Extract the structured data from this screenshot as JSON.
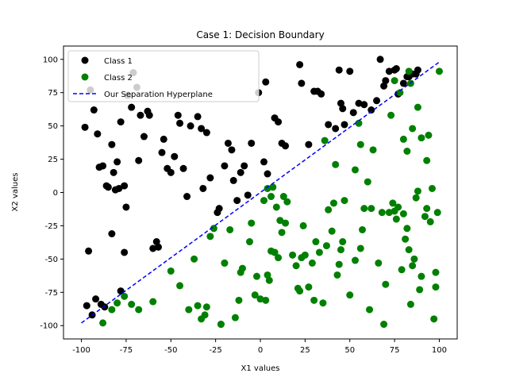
{
  "chart_data": {
    "type": "scatter",
    "title": "Case 1: Decision Boundary",
    "xlabel": "X1 values",
    "ylabel": "X2 values",
    "xlim": [
      -110,
      110
    ],
    "ylim": [
      -110,
      110
    ],
    "xticks": [
      -100,
      -75,
      -50,
      -25,
      0,
      25,
      50,
      75,
      100
    ],
    "yticks": [
      -100,
      -75,
      -50,
      -25,
      0,
      25,
      50,
      75,
      100
    ],
    "grid": false,
    "legend_position": "top-left",
    "series": [
      {
        "name": "Class 1",
        "color": "#000000",
        "marker": "circle",
        "points": [
          [
            -98,
            49
          ],
          [
            -95,
            77
          ],
          [
            -93,
            62
          ],
          [
            -91,
            44
          ],
          [
            -90,
            19
          ],
          [
            -88,
            20
          ],
          [
            -86,
            5
          ],
          [
            -85,
            4
          ],
          [
            -83,
            36
          ],
          [
            -82,
            15
          ],
          [
            -81,
            2
          ],
          [
            -80,
            23
          ],
          [
            -79,
            3
          ],
          [
            -78,
            53
          ],
          [
            -76,
            5
          ],
          [
            -75,
            -11
          ],
          [
            -74,
            73
          ],
          [
            -72,
            64
          ],
          [
            -71,
            90
          ],
          [
            -69,
            79
          ],
          [
            -68,
            24
          ],
          [
            -67,
            58
          ],
          [
            -65,
            42
          ],
          [
            -63,
            61
          ],
          [
            -62,
            58
          ],
          [
            -60,
            -42
          ],
          [
            -58,
            -37
          ],
          [
            -57,
            -41
          ],
          [
            -55,
            30
          ],
          [
            -54,
            40
          ],
          [
            -52,
            18
          ],
          [
            -50,
            15
          ],
          [
            -48,
            27
          ],
          [
            -46,
            58
          ],
          [
            -45,
            52
          ],
          [
            -43,
            18
          ],
          [
            -41,
            -3
          ],
          [
            -39,
            50
          ],
          [
            -35,
            57
          ],
          [
            -33,
            48
          ],
          [
            -32,
            3
          ],
          [
            -30,
            45
          ],
          [
            -28,
            11
          ],
          [
            -24,
            -15
          ],
          [
            -23,
            -12
          ],
          [
            -20,
            20
          ],
          [
            -18,
            37
          ],
          [
            -16,
            32
          ],
          [
            -15,
            9
          ],
          [
            -13,
            -6
          ],
          [
            -11,
            15
          ],
          [
            -9,
            20
          ],
          [
            -7,
            -2
          ],
          [
            -5,
            37
          ],
          [
            2,
            23
          ],
          [
            4,
            14
          ],
          [
            8,
            56
          ],
          [
            10,
            53
          ],
          [
            12,
            37
          ],
          [
            14,
            35
          ],
          [
            22,
            96
          ],
          [
            23,
            82
          ],
          [
            27,
            36
          ],
          [
            30,
            76
          ],
          [
            32,
            76
          ],
          [
            34,
            74
          ],
          [
            38,
            51
          ],
          [
            42,
            48
          ],
          [
            44,
            92
          ],
          [
            45,
            67
          ],
          [
            46,
            63
          ],
          [
            47,
            51
          ],
          [
            50,
            91
          ],
          [
            52,
            60
          ],
          [
            55,
            67
          ],
          [
            58,
            66
          ],
          [
            62,
            62
          ],
          [
            65,
            69
          ],
          [
            67,
            100
          ],
          [
            69,
            80
          ],
          [
            70,
            84
          ],
          [
            72,
            91
          ],
          [
            75,
            92
          ],
          [
            76,
            93
          ],
          [
            77,
            74
          ],
          [
            80,
            82
          ],
          [
            82,
            87
          ],
          [
            83,
            87
          ],
          [
            85,
            89
          ],
          [
            87,
            89
          ],
          [
            88,
            92
          ],
          [
            -97,
            -85
          ],
          [
            -96,
            -44
          ],
          [
            -94,
            -92
          ],
          [
            -92,
            -80
          ],
          [
            -89,
            -84
          ],
          [
            -87,
            -86
          ],
          [
            -83,
            -31
          ],
          [
            -78,
            -74
          ],
          [
            -76,
            -45
          ],
          [
            -1,
            75
          ],
          [
            3,
            83
          ]
        ]
      },
      {
        "name": "Class 2",
        "color": "#008000",
        "marker": "circle",
        "points": [
          [
            -88,
            -98
          ],
          [
            -83,
            -88
          ],
          [
            -80,
            -83
          ],
          [
            -76,
            -78
          ],
          [
            -72,
            -84
          ],
          [
            -68,
            -88
          ],
          [
            -60,
            -82
          ],
          [
            -50,
            -59
          ],
          [
            -45,
            -70
          ],
          [
            -40,
            -88
          ],
          [
            -37,
            -50
          ],
          [
            -35,
            -85
          ],
          [
            -33,
            -95
          ],
          [
            -31,
            -92
          ],
          [
            -30,
            -86
          ],
          [
            -28,
            -33
          ],
          [
            -26,
            -27
          ],
          [
            -22,
            -99
          ],
          [
            -20,
            -53
          ],
          [
            -17,
            -28
          ],
          [
            -14,
            -94
          ],
          [
            -12,
            -81
          ],
          [
            -10,
            -57
          ],
          [
            -6,
            -37
          ],
          [
            -5,
            -23
          ],
          [
            -3,
            -77
          ],
          [
            -2,
            -63
          ],
          [
            0,
            -80
          ],
          [
            2,
            -6
          ],
          [
            3,
            -81
          ],
          [
            4,
            3
          ],
          [
            5,
            -66
          ],
          [
            6,
            -44
          ],
          [
            7,
            4
          ],
          [
            8,
            -45
          ],
          [
            9,
            -11
          ],
          [
            10,
            -49
          ],
          [
            12,
            -30
          ],
          [
            13,
            -3
          ],
          [
            14,
            -23
          ],
          [
            15,
            -7
          ],
          [
            18,
            -47
          ],
          [
            20,
            -55
          ],
          [
            21,
            -72
          ],
          [
            22,
            -74
          ],
          [
            23,
            -49
          ],
          [
            24,
            -25
          ],
          [
            25,
            -47
          ],
          [
            27,
            -71
          ],
          [
            29,
            -53
          ],
          [
            30,
            -81
          ],
          [
            31,
            -37
          ],
          [
            33,
            -45
          ],
          [
            35,
            -83
          ],
          [
            37,
            -40
          ],
          [
            38,
            -13
          ],
          [
            40,
            -29
          ],
          [
            41,
            -8
          ],
          [
            42,
            21
          ],
          [
            43,
            -62
          ],
          [
            44,
            -54
          ],
          [
            45,
            -43
          ],
          [
            46,
            -37
          ],
          [
            47,
            -6
          ],
          [
            50,
            -77
          ],
          [
            53,
            -51
          ],
          [
            55,
            52
          ],
          [
            56,
            -42
          ],
          [
            57,
            -28
          ],
          [
            58,
            -12
          ],
          [
            60,
            8
          ],
          [
            61,
            -88
          ],
          [
            62,
            -12
          ],
          [
            63,
            32
          ],
          [
            66,
            -53
          ],
          [
            68,
            -15
          ],
          [
            69,
            -99
          ],
          [
            70,
            -69
          ],
          [
            72,
            -15
          ],
          [
            73,
            58
          ],
          [
            74,
            -8
          ],
          [
            75,
            -14
          ],
          [
            76,
            -20
          ],
          [
            77,
            -11
          ],
          [
            78,
            75
          ],
          [
            79,
            -58
          ],
          [
            80,
            -16
          ],
          [
            81,
            -35
          ],
          [
            82,
            -27
          ],
          [
            83,
            -43
          ],
          [
            84,
            -84
          ],
          [
            85,
            -55
          ],
          [
            86,
            -50
          ],
          [
            87,
            -4
          ],
          [
            88,
            1
          ],
          [
            89,
            -73
          ],
          [
            90,
            -63
          ],
          [
            92,
            -18
          ],
          [
            93,
            -12
          ],
          [
            94,
            43
          ],
          [
            95,
            -22
          ],
          [
            96,
            3
          ],
          [
            97,
            -95
          ],
          [
            98,
            -60
          ],
          [
            98,
            -71
          ],
          [
            99,
            -15
          ],
          [
            100,
            91
          ],
          [
            84,
            82
          ],
          [
            83,
            91
          ],
          [
            75,
            84
          ],
          [
            85,
            48
          ],
          [
            88,
            64
          ],
          [
            90,
            41
          ],
          [
            93,
            24
          ],
          [
            82,
            31
          ],
          [
            80,
            40
          ],
          [
            56,
            36
          ],
          [
            53,
            17
          ],
          [
            36,
            39
          ],
          [
            11,
            -21
          ],
          [
            8,
            -45
          ],
          [
            6,
            -3
          ],
          [
            4,
            -62
          ],
          [
            -11,
            -60
          ],
          [
            -20,
            -53
          ],
          [
            -22,
            -99
          ]
        ]
      },
      {
        "name": "Our Separation Hyperplane",
        "color": "#0000ff",
        "style": "dashed",
        "line": [
          [
            -100,
            -98
          ],
          [
            100,
            98
          ]
        ]
      }
    ]
  }
}
